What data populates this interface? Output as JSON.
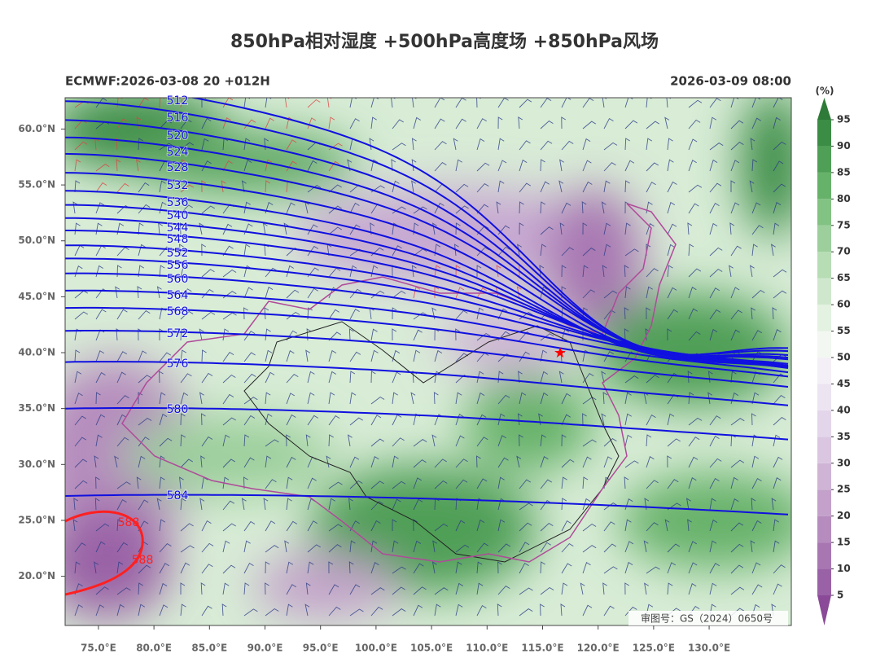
{
  "title": "850hPa相对湿度 +500hPa高度场 +850hPa风场",
  "subtitle_left": "ECMWF:2026-03-08 20 +012H",
  "subtitle_right": "2026-03-09 08:00",
  "map": {
    "xlim": [
      72,
      137.4
    ],
    "ylim": [
      15.6,
      62.8
    ],
    "xticks": [
      {
        "value": 75,
        "label": "75.0°E"
      },
      {
        "value": 80,
        "label": "80.0°E"
      },
      {
        "value": 85,
        "label": "85.0°E"
      },
      {
        "value": 90,
        "label": "90.0°E"
      },
      {
        "value": 95,
        "label": "95.0°E"
      },
      {
        "value": 100,
        "label": "100.0°E"
      },
      {
        "value": 105,
        "label": "105.0°E"
      },
      {
        "value": 110,
        "label": "110.0°E"
      },
      {
        "value": 115,
        "label": "115.0°E"
      },
      {
        "value": 120,
        "label": "120.0°E"
      },
      {
        "value": 125,
        "label": "125.0°E"
      },
      {
        "value": 130,
        "label": "130.0°E"
      }
    ],
    "yticks": [
      {
        "value": 20,
        "label": "20.0°N"
      },
      {
        "value": 25,
        "label": "25.0°N"
      },
      {
        "value": 30,
        "label": "30.0°N"
      },
      {
        "value": 35,
        "label": "35.0°N"
      },
      {
        "value": 40,
        "label": "40.0°N"
      },
      {
        "value": 45,
        "label": "45.0°N"
      },
      {
        "value": 50,
        "label": "50.0°N"
      },
      {
        "value": 55,
        "label": "55.0°N"
      },
      {
        "value": 60,
        "label": "60.0°N"
      }
    ],
    "height_contours": [
      512,
      516,
      520,
      524,
      528,
      532,
      536,
      540,
      544,
      548,
      552,
      556,
      560,
      564,
      568,
      572,
      576,
      580,
      584
    ],
    "contour_color": "#1010e0",
    "highlight_contour": 588,
    "highlight_color": "#ff2020"
  },
  "colorbar": {
    "unit": "(%)",
    "levels": [
      5,
      10,
      15,
      20,
      25,
      30,
      35,
      40,
      45,
      50,
      55,
      60,
      65,
      70,
      75,
      80,
      85,
      90,
      95
    ],
    "colors": [
      "#8a4a98",
      "#9a62a6",
      "#a877b2",
      "#b68cbe",
      "#c3a1ca",
      "#cfb4d6",
      "#dac6e0",
      "#e3d6ea",
      "#ece4f1",
      "#f4eff7",
      "#f2f8f1",
      "#e3f2e1",
      "#cfe8cd",
      "#b7ddb5",
      "#9ccf9b",
      "#82c282",
      "#67b26a",
      "#4f9f56",
      "#3b8c45",
      "#2e7a38"
    ]
  },
  "approval": "审图号：GS（2024）0650号"
}
